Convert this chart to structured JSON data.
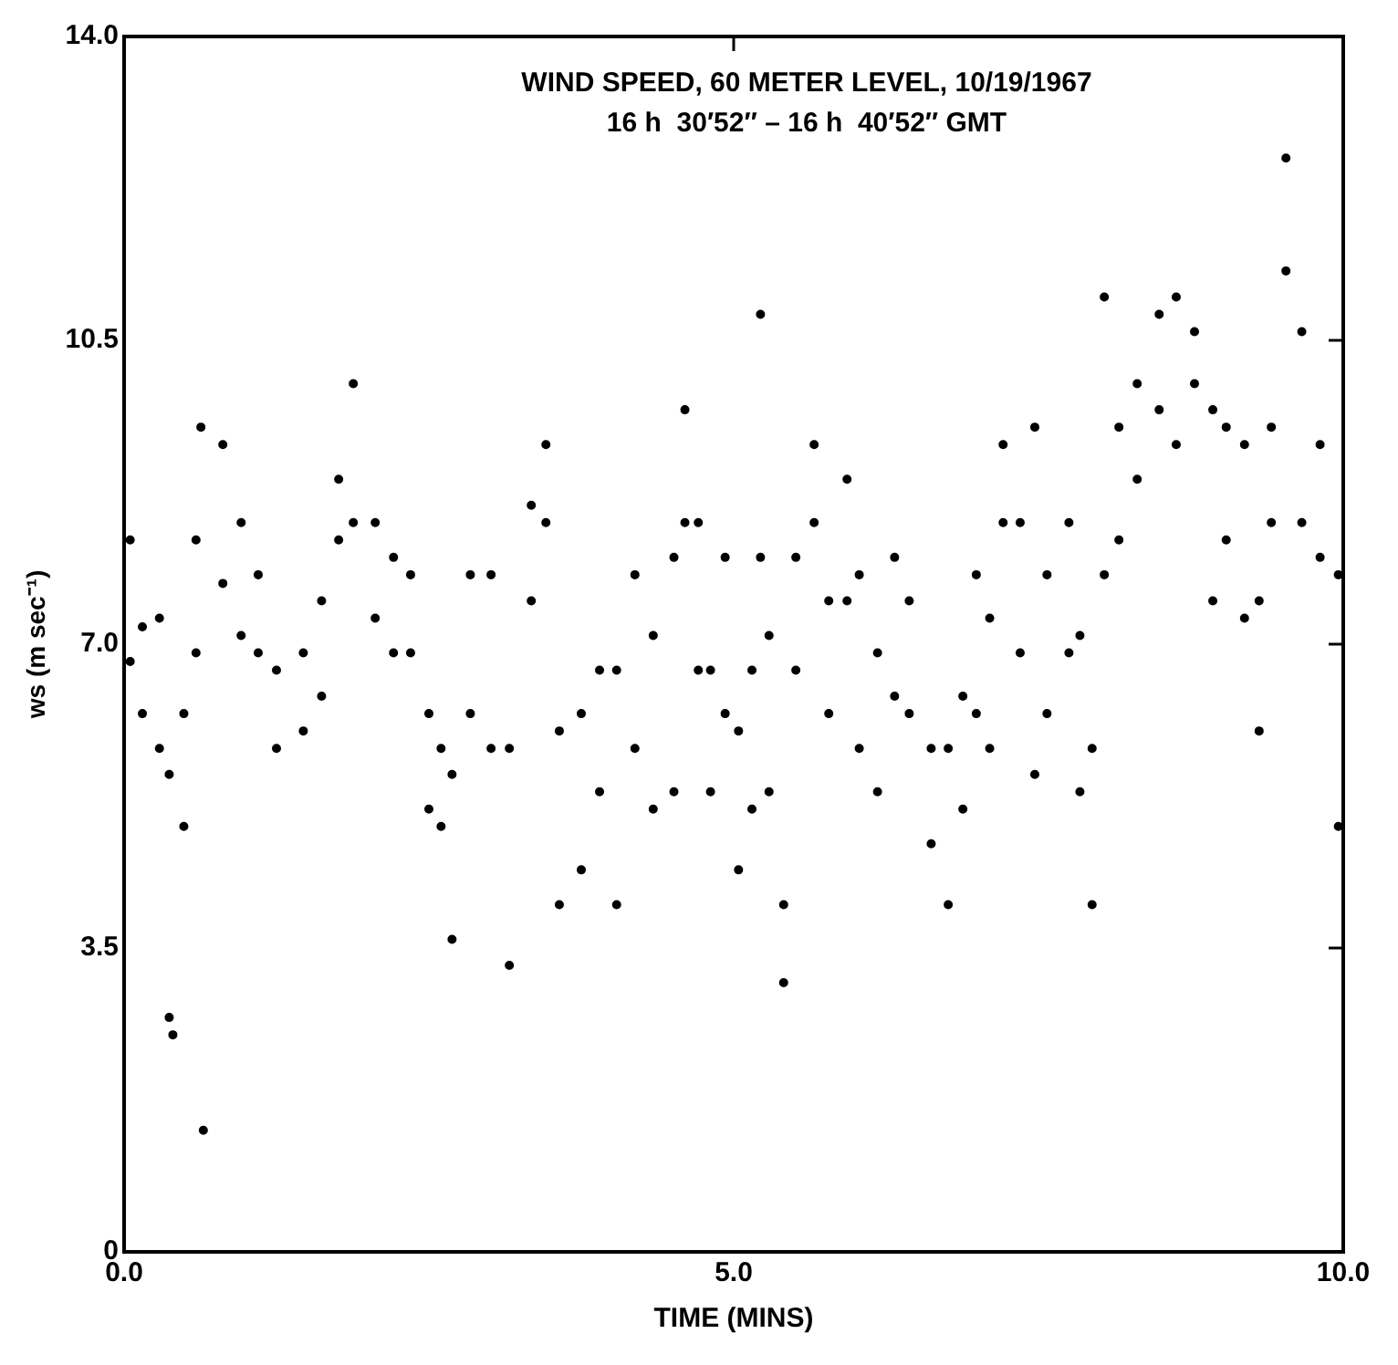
{
  "chart_data": {
    "type": "scatter",
    "title": "WIND SPEED, 60 METER LEVEL, 10/19/1967",
    "subtitle": "16 h  30′52″ – 16 h  40′52″ GMT",
    "xlabel": "TIME (MINS)",
    "ylabel": "ws (m sec⁻¹)",
    "x": [
      0.05,
      0.05,
      0.15,
      0.15,
      0.29,
      0.29,
      0.37,
      0.37,
      0.4,
      0.49,
      0.49,
      0.59,
      0.59,
      0.63,
      0.65,
      0.81,
      0.81,
      0.96,
      0.96,
      1.1,
      1.1,
      1.25,
      1.25,
      1.47,
      1.47,
      1.62,
      1.62,
      1.76,
      1.76,
      1.88,
      1.88,
      2.06,
      2.06,
      2.21,
      2.21,
      2.35,
      2.35,
      2.5,
      2.5,
      2.6,
      2.6,
      2.69,
      2.69,
      2.84,
      2.84,
      3.01,
      3.01,
      3.16,
      3.16,
      3.34,
      3.34,
      3.46,
      3.46,
      3.57,
      3.57,
      3.75,
      3.75,
      3.9,
      3.9,
      4.04,
      4.04,
      4.19,
      4.19,
      4.34,
      4.34,
      4.51,
      4.51,
      4.6,
      4.6,
      4.71,
      4.71,
      4.81,
      4.81,
      4.93,
      4.93,
      5.04,
      5.04,
      5.15,
      5.15,
      5.22,
      5.22,
      5.29,
      5.29,
      5.41,
      5.41,
      5.51,
      5.51,
      5.66,
      5.66,
      5.78,
      5.78,
      5.93,
      5.93,
      6.03,
      6.03,
      6.18,
      6.18,
      6.32,
      6.32,
      6.44,
      6.44,
      6.62,
      6.62,
      6.76,
      6.76,
      6.88,
      6.88,
      6.99,
      6.99,
      7.1,
      7.1,
      7.21,
      7.21,
      7.35,
      7.35,
      7.47,
      7.47,
      7.57,
      7.57,
      7.75,
      7.75,
      7.84,
      7.84,
      7.94,
      7.94,
      8.04,
      8.04,
      8.16,
      8.16,
      8.31,
      8.31,
      8.49,
      8.49,
      8.63,
      8.63,
      8.78,
      8.78,
      8.93,
      8.93,
      9.04,
      9.04,
      9.19,
      9.19,
      9.31,
      9.31,
      9.41,
      9.41,
      9.53,
      9.53,
      9.66,
      9.66,
      9.81,
      9.81,
      9.96,
      9.96
    ],
    "series": [
      {
        "color": "#000000",
        "values": [
          8.2,
          6.8,
          7.2,
          6.2,
          7.3,
          5.8,
          5.5,
          2.7,
          2.5,
          6.2,
          4.9,
          8.2,
          6.9,
          9.5,
          1.4,
          9.3,
          7.7,
          8.4,
          7.1,
          7.8,
          6.9,
          6.7,
          5.8,
          6.9,
          6.0,
          7.5,
          6.4,
          8.9,
          8.2,
          10.0,
          8.4,
          8.4,
          7.3,
          8.0,
          6.9,
          7.8,
          6.9,
          6.2,
          5.1,
          5.8,
          4.9,
          5.5,
          3.6,
          7.8,
          6.2,
          7.8,
          5.8,
          5.8,
          3.3,
          8.6,
          7.5,
          9.3,
          8.4,
          6.0,
          4.0,
          6.2,
          4.4,
          6.7,
          5.3,
          6.7,
          4.0,
          7.8,
          5.8,
          7.1,
          5.1,
          8.0,
          5.3,
          9.7,
          8.4,
          8.4,
          6.7,
          6.7,
          5.3,
          8.0,
          6.2,
          6.0,
          4.4,
          6.7,
          5.1,
          10.8,
          8.0,
          7.1,
          5.3,
          4.0,
          3.1,
          8.0,
          6.7,
          9.3,
          8.4,
          7.5,
          6.2,
          8.9,
          7.5,
          7.8,
          5.8,
          6.9,
          5.3,
          8.0,
          6.4,
          7.5,
          6.2,
          5.8,
          4.7,
          5.8,
          4.0,
          6.4,
          5.1,
          7.8,
          6.2,
          7.3,
          5.8,
          9.3,
          8.4,
          8.4,
          6.9,
          9.5,
          5.5,
          7.8,
          6.2,
          8.4,
          6.9,
          7.1,
          5.3,
          5.8,
          4.0,
          11.0,
          7.8,
          9.5,
          8.2,
          10.0,
          8.9,
          10.8,
          9.7,
          11.0,
          9.3,
          10.6,
          10.0,
          9.7,
          7.5,
          9.5,
          8.2,
          9.3,
          7.3,
          7.5,
          6.0,
          9.5,
          8.4,
          12.6,
          11.3,
          10.6,
          8.4,
          9.3,
          8.0,
          7.8,
          4.9
        ]
      }
    ],
    "xlim": [
      0,
      10
    ],
    "xticks": [
      {
        "value": 0,
        "label": "0.0"
      },
      {
        "value": 5,
        "label": "5.0"
      },
      {
        "value": 10,
        "label": "10.0"
      }
    ],
    "ylim": [
      0,
      14
    ],
    "yticks": [
      0,
      3.5,
      {
        "value": 7,
        "label": "7.0"
      },
      10.5,
      {
        "value": 14,
        "label": "14.0"
      }
    ],
    "grid": false,
    "legend": false,
    "marker": "circle"
  }
}
